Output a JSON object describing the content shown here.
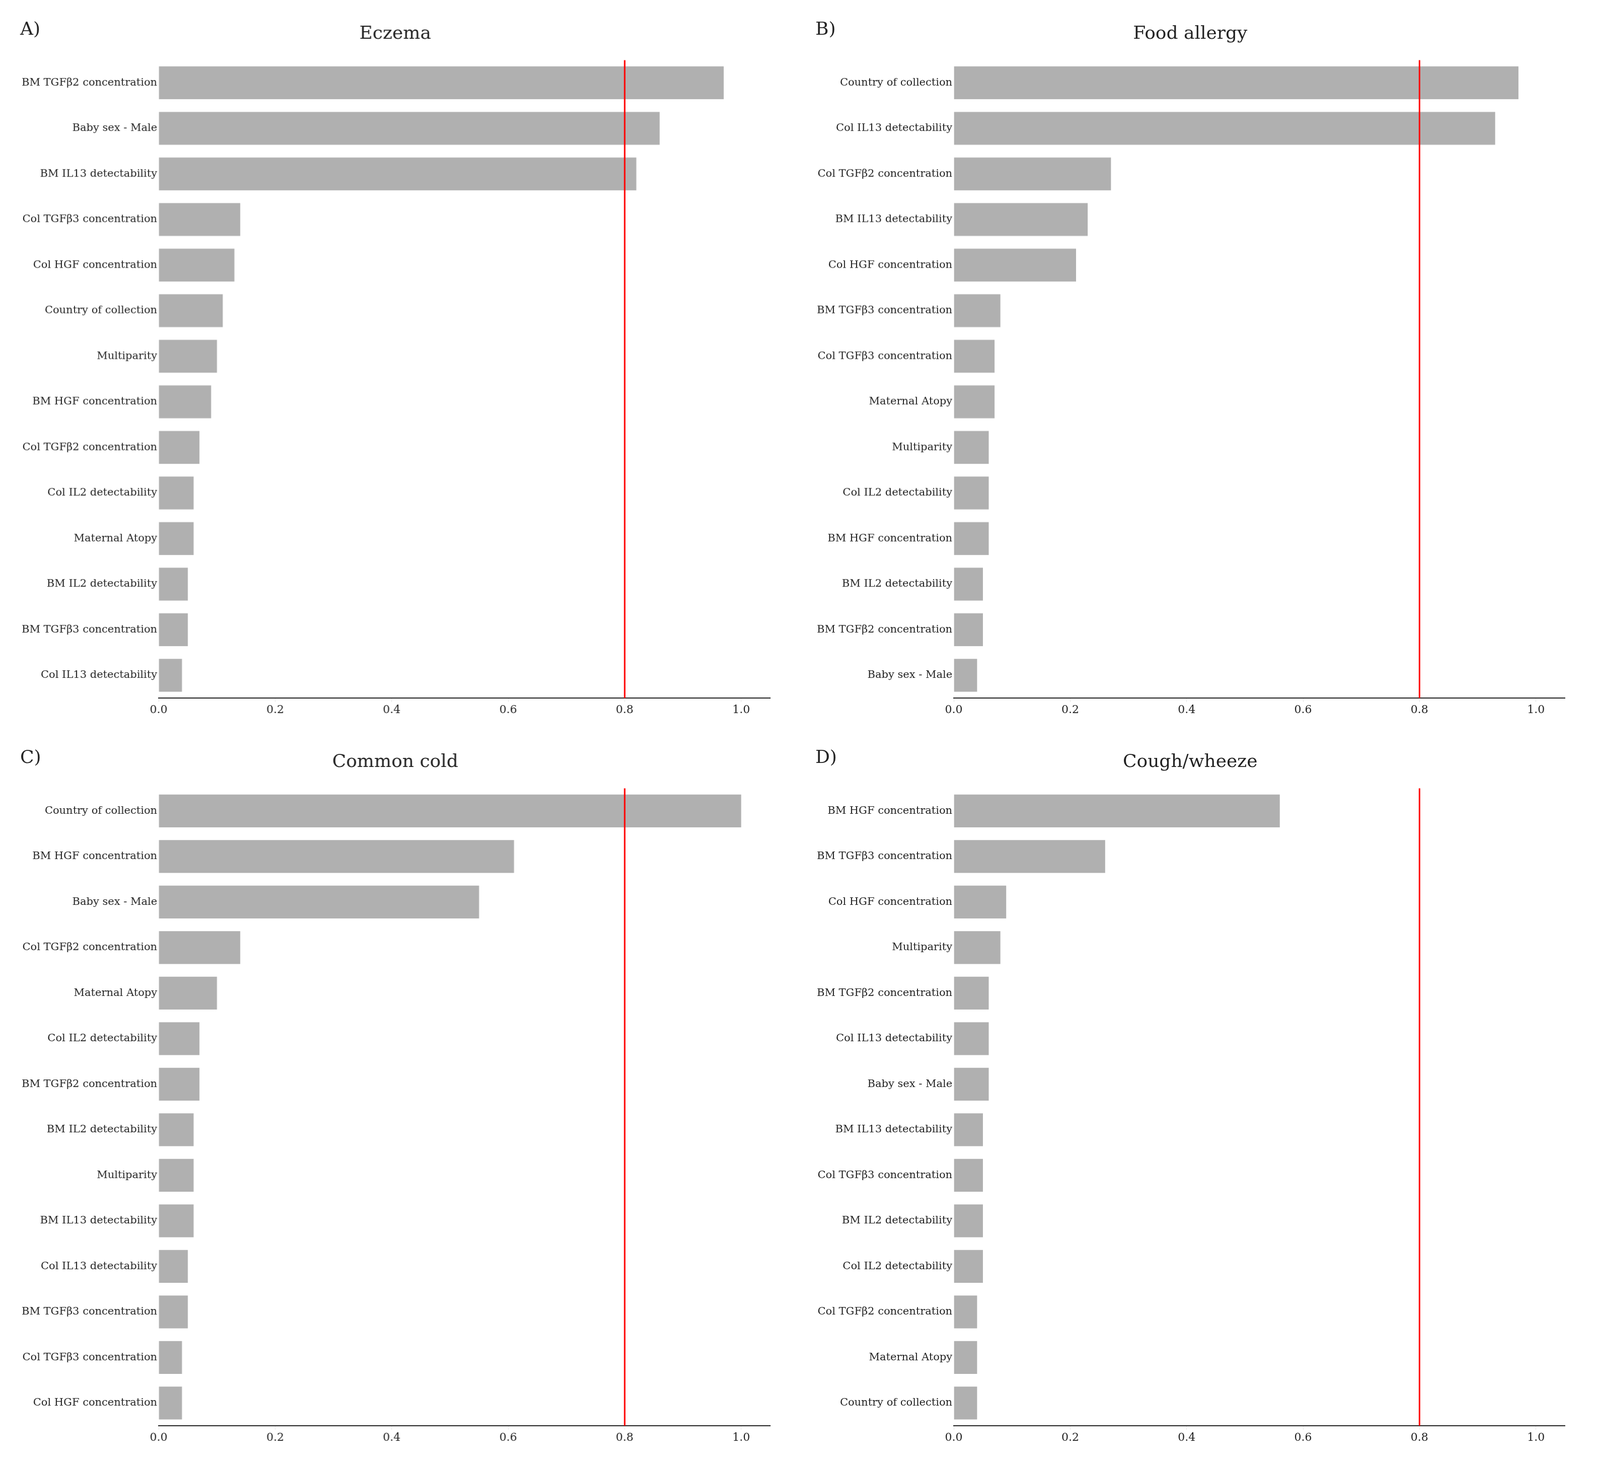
{
  "chart_data": [
    {
      "type": "bar",
      "orientation": "horizontal",
      "title": "Eczema",
      "panel_label": "A)",
      "categories": [
        "BM TGFβ2 concentration",
        "Baby sex - Male",
        "BM IL13 detectability",
        "Col TGFβ3 concentration",
        "Col HGF concentration",
        "Country of collection",
        "Multiparity",
        "BM HGF concentration",
        "Col TGFβ2 concentration",
        "Col IL2 detectability",
        "Maternal Atopy",
        "BM IL2 detectability",
        "BM TGFβ3 concentration",
        "Col IL13 detectability"
      ],
      "values": [
        0.97,
        0.86,
        0.82,
        0.14,
        0.13,
        0.11,
        0.1,
        0.09,
        0.07,
        0.06,
        0.06,
        0.05,
        0.05,
        0.04
      ],
      "color": "#b0b0b0",
      "xlim": [
        0.0,
        1.05
      ],
      "xticks": [
        {
          "value": 0.0,
          "label": "0.0"
        },
        0.2,
        0.4,
        0.6,
        0.8,
        {
          "value": 1.0,
          "label": "1.0"
        }
      ],
      "reference_line": {
        "x": 0.8,
        "color": "red"
      },
      "grid": false
    },
    {
      "type": "bar",
      "orientation": "horizontal",
      "title": "Food allergy",
      "panel_label": "B)",
      "categories": [
        "Country of collection",
        "Col IL13 detectability",
        "Col TGFβ2 concentration",
        "BM IL13 detectability",
        "Col HGF concentration",
        "BM TGFβ3 concentration",
        "Col TGFβ3 concentration",
        "Maternal Atopy",
        "Multiparity",
        "Col IL2 detectability",
        "BM HGF concentration",
        "BM IL2 detectability",
        "BM TGFβ2 concentration",
        "Baby sex - Male"
      ],
      "values": [
        0.97,
        0.93,
        0.27,
        0.23,
        0.21,
        0.08,
        0.07,
        0.07,
        0.06,
        0.06,
        0.06,
        0.05,
        0.05,
        0.04
      ],
      "color": "#b0b0b0",
      "xlim": [
        0.0,
        1.05
      ],
      "xticks": [
        {
          "value": 0.0,
          "label": "0.0"
        },
        0.2,
        0.4,
        0.6,
        0.8,
        {
          "value": 1.0,
          "label": "1.0"
        }
      ],
      "reference_line": {
        "x": 0.8,
        "color": "red"
      },
      "grid": false
    },
    {
      "type": "bar",
      "orientation": "horizontal",
      "title": "Common cold",
      "panel_label": "C)",
      "categories": [
        "Country of collection",
        "BM HGF concentration",
        "Baby sex - Male",
        "Col TGFβ2 concentration",
        "Maternal Atopy",
        "Col IL2 detectability",
        "BM TGFβ2 concentration",
        "BM IL2 detectability",
        "Multiparity",
        "BM IL13 detectability",
        "Col IL13 detectability",
        "BM TGFβ3 concentration",
        "Col TGFβ3 concentration",
        "Col HGF concentration"
      ],
      "values": [
        1.0,
        0.61,
        0.55,
        0.14,
        0.1,
        0.07,
        0.07,
        0.06,
        0.06,
        0.06,
        0.05,
        0.05,
        0.04,
        0.04
      ],
      "color": "#b0b0b0",
      "xlim": [
        0.0,
        1.05
      ],
      "xticks": [
        {
          "value": 0.0,
          "label": "0.0"
        },
        0.2,
        0.4,
        0.6,
        0.8,
        {
          "value": 1.0,
          "label": "1.0"
        }
      ],
      "reference_line": {
        "x": 0.8,
        "color": "red"
      },
      "grid": false
    },
    {
      "type": "bar",
      "orientation": "horizontal",
      "title": "Cough/wheeze",
      "panel_label": "D)",
      "categories": [
        "BM HGF concentration",
        "BM TGFβ3 concentration",
        "Col HGF concentration",
        "Multiparity",
        "BM TGFβ2 concentration",
        "Col IL13 detectability",
        "Baby sex - Male",
        "BM IL13 detectability",
        "Col TGFβ3 concentration",
        "BM IL2 detectability",
        "Col IL2 detectability",
        "Col TGFβ2 concentration",
        "Maternal Atopy",
        "Country of collection"
      ],
      "values": [
        0.56,
        0.26,
        0.09,
        0.08,
        0.06,
        0.06,
        0.06,
        0.05,
        0.05,
        0.05,
        0.05,
        0.04,
        0.04,
        0.04
      ],
      "color": "#b0b0b0",
      "xlim": [
        0.0,
        1.05
      ],
      "xticks": [
        {
          "value": 0.0,
          "label": "0.0"
        },
        0.2,
        0.4,
        0.6,
        0.8,
        {
          "value": 1.0,
          "label": "1.0"
        }
      ],
      "reference_line": {
        "x": 0.8,
        "color": "red"
      },
      "grid": false
    }
  ]
}
